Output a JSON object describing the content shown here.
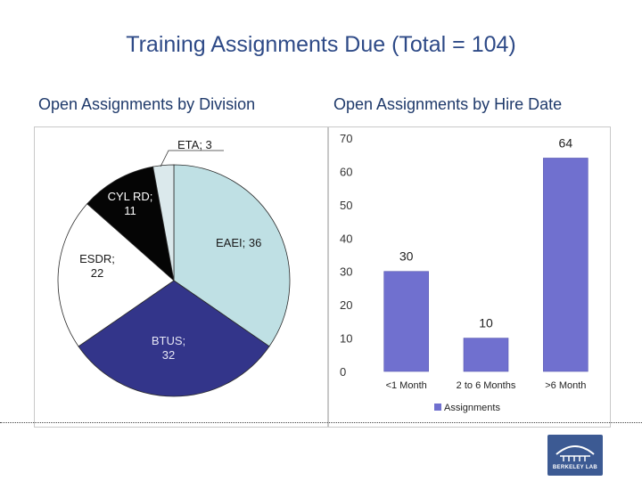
{
  "title": "Training Assignments Due (Total = 104)",
  "chart_data": [
    {
      "type": "pie",
      "title": "Open Assignments by Division",
      "slices": [
        {
          "label": "EAEI",
          "value": 36,
          "display": "EAEI; 36",
          "color": "#bfe0e4"
        },
        {
          "label": "BTUS",
          "value": 32,
          "display": "BTUS; 32",
          "color": "#33358a"
        },
        {
          "label": "ESDR",
          "value": 22,
          "display": "ESDR; 22",
          "color": "#ffffff"
        },
        {
          "label": "CYL RD",
          "value": 11,
          "display": "CYL RD; 11",
          "color": "#050505"
        },
        {
          "label": "ETA",
          "value": 3,
          "display": "ETA; 3",
          "color": "#dbe9ec"
        }
      ]
    },
    {
      "type": "bar",
      "title": "Open Assignments by Hire Date",
      "categories": [
        "<1 Month",
        "2 to 6 Months",
        ">6 Month"
      ],
      "series": [
        {
          "name": "Assignments",
          "values": [
            30,
            10,
            64
          ],
          "color": "#7070cf"
        }
      ],
      "value_labels": [
        "30",
        "10",
        "64"
      ],
      "ylim": [
        0,
        70
      ],
      "yticks": [
        "0",
        "10",
        "20",
        "30",
        "40",
        "50",
        "60",
        "70"
      ],
      "legend": "bottom"
    }
  ],
  "logo": {
    "text": "BERKELEY LAB"
  }
}
